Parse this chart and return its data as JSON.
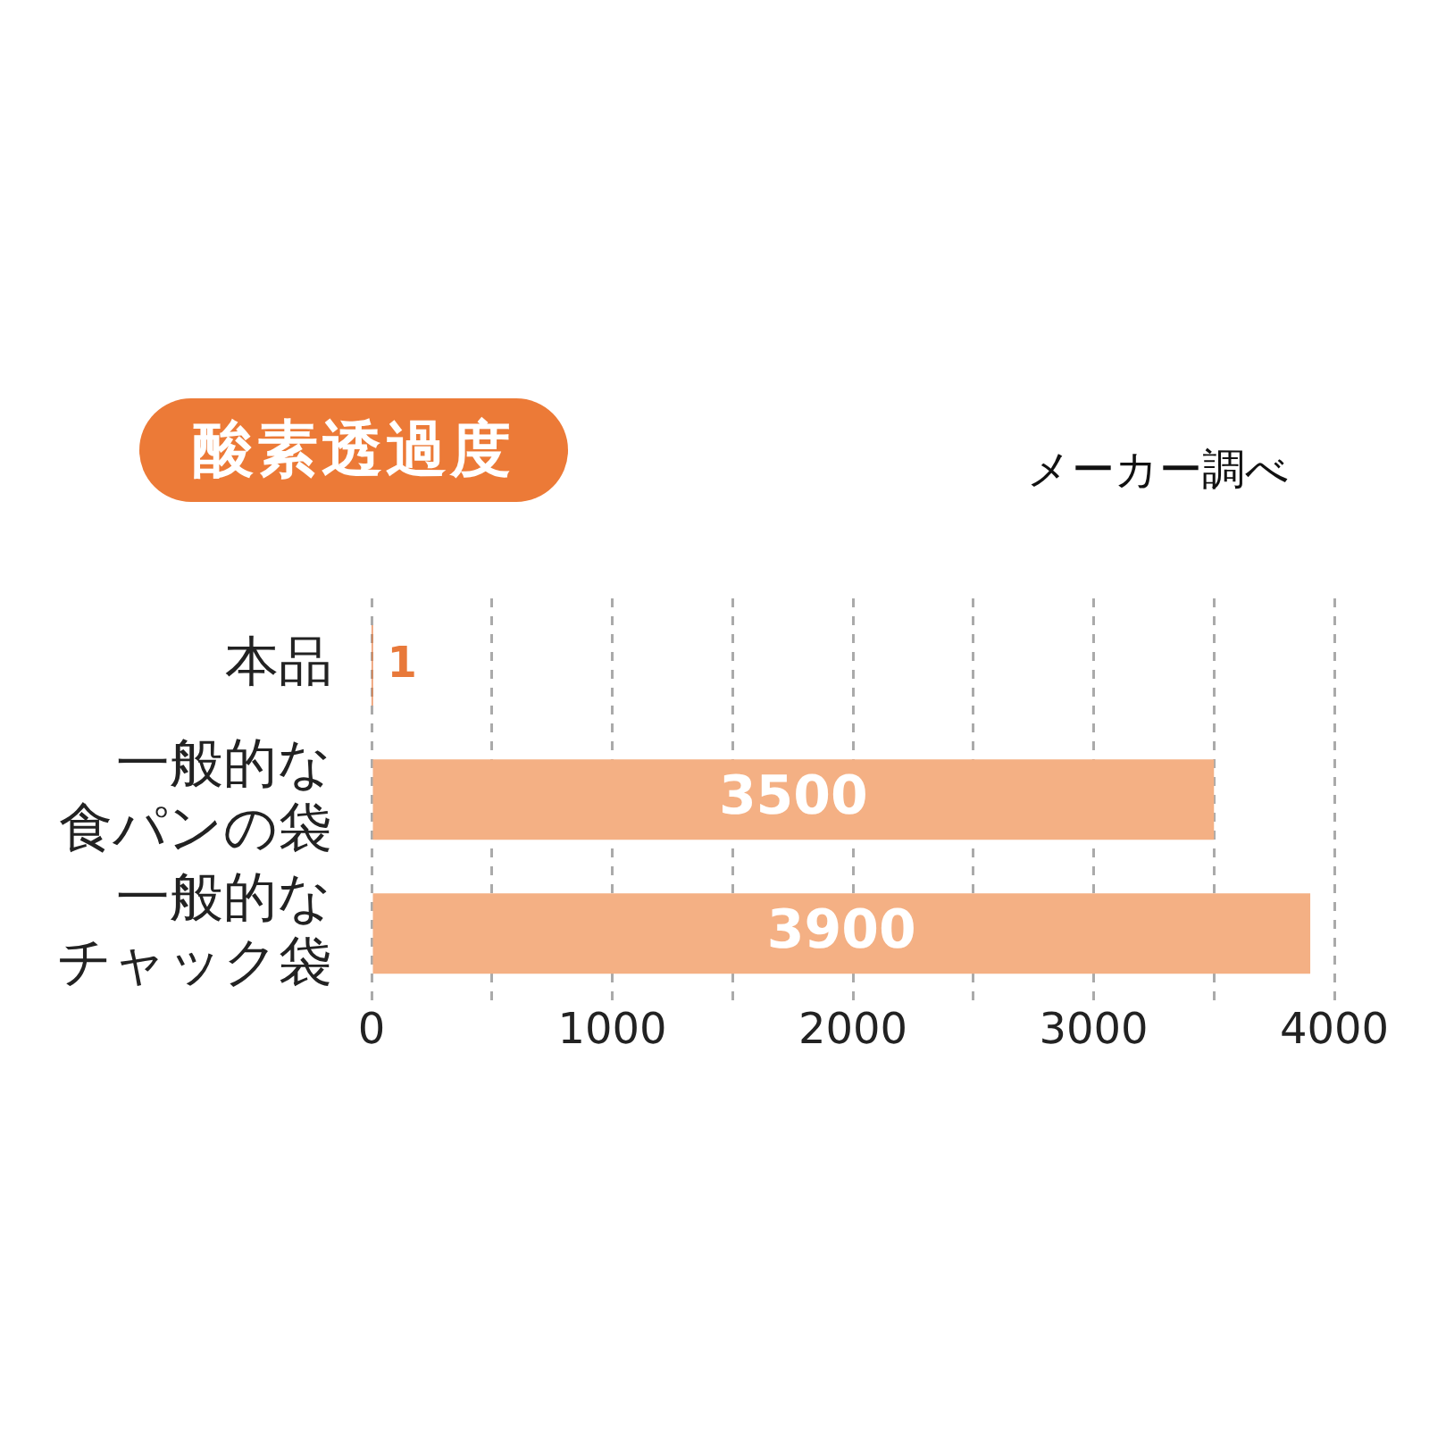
{
  "chart_data": {
    "type": "bar",
    "orientation": "horizontal",
    "title": "酸素透過度",
    "annotations": [
      "メーカー調べ"
    ],
    "categories": [
      "本品",
      "一般的な食パンの袋",
      "一般的なチャック袋"
    ],
    "values": [
      1,
      3500,
      3900
    ],
    "colors": [
      "#e8793a",
      "#f4b084",
      "#f4b084"
    ],
    "xlim": [
      0,
      4000
    ],
    "xticks": [
      0,
      {
        "value": 500,
        "label": null
      },
      1000,
      {
        "value": 1500,
        "label": null
      },
      2000,
      {
        "value": 2500,
        "label": null
      },
      3000,
      {
        "value": 3500,
        "label": null
      },
      4000
    ],
    "grid": "x",
    "data_labels": true,
    "legend": false
  }
}
